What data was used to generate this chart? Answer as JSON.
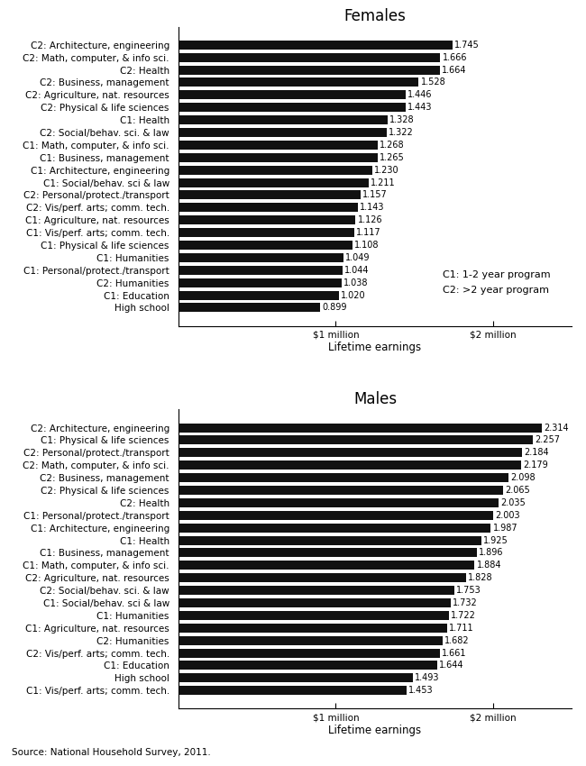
{
  "females": {
    "title": "Females",
    "labels": [
      "C2: Architecture, engineering",
      "C2: Math, computer, & info sci.",
      "C2: Health",
      "C2: Business, management",
      "C2: Agriculture, nat. resources",
      "C2: Physical & life sciences",
      "C1: Health",
      "C2: Social/behav. sci. & law",
      "C1: Math, computer, & info sci.",
      "C1: Business, management",
      "C1: Architecture, engineering",
      "C1: Social/behav. sci & law",
      "C2: Personal/protect./transport",
      "C2: Vis/perf. arts; comm. tech.",
      "C1: Agriculture, nat. resources",
      "C1: Vis/perf. arts; comm. tech.",
      "C1: Physical & life sciences",
      "C1: Humanities",
      "C1: Personal/protect./transport",
      "C2: Humanities",
      "C1: Education",
      "High school"
    ],
    "values": [
      1.745,
      1.666,
      1.664,
      1.528,
      1.446,
      1.443,
      1.328,
      1.322,
      1.268,
      1.265,
      1.23,
      1.211,
      1.157,
      1.143,
      1.126,
      1.117,
      1.108,
      1.049,
      1.044,
      1.038,
      1.02,
      0.899
    ]
  },
  "males": {
    "title": "Males",
    "labels": [
      "C2: Architecture, engineering",
      "C1: Physical & life sciences",
      "C2: Personal/protect./transport",
      "C2: Math, computer, & info sci.",
      "C2: Business, management",
      "C2: Physical & life sciences",
      "C2: Health",
      "C1: Personal/protect./transport",
      "C1: Architecture, engineering",
      "C1: Health",
      "C1: Business, management",
      "C1: Math, computer, & info sci.",
      "C2: Agriculture, nat. resources",
      "C2: Social/behav. sci. & law",
      "C1: Social/behav. sci & law",
      "C1: Humanities",
      "C1: Agriculture, nat. resources",
      "C2: Humanities",
      "C2: Vis/perf. arts; comm. tech.",
      "C1: Education",
      "High school",
      "C1: Vis/perf. arts; comm. tech."
    ],
    "values": [
      2.314,
      2.257,
      2.184,
      2.179,
      2.098,
      2.065,
      2.035,
      2.003,
      1.987,
      1.925,
      1.896,
      1.884,
      1.828,
      1.753,
      1.732,
      1.722,
      1.711,
      1.682,
      1.661,
      1.644,
      1.493,
      1.453
    ]
  },
  "bar_color": "#111111",
  "bar_height": 0.72,
  "xlim_min": 0.0,
  "xlim_max": 2.5,
  "xticks": [
    1.0,
    2.0
  ],
  "xticklabels": [
    "$1 million",
    "$2 million"
  ],
  "xlabel": "Lifetime earnings",
  "legend_text_line1": "C1: 1-2 year program",
  "legend_text_line2": "C2: >2 year program",
  "source_text": "Source: National Household Survey, 2011.",
  "value_label_fontsize": 7.0,
  "axis_label_fontsize": 8.5,
  "tick_label_fontsize": 7.5,
  "title_fontsize": 12,
  "legend_fontsize": 8.0
}
